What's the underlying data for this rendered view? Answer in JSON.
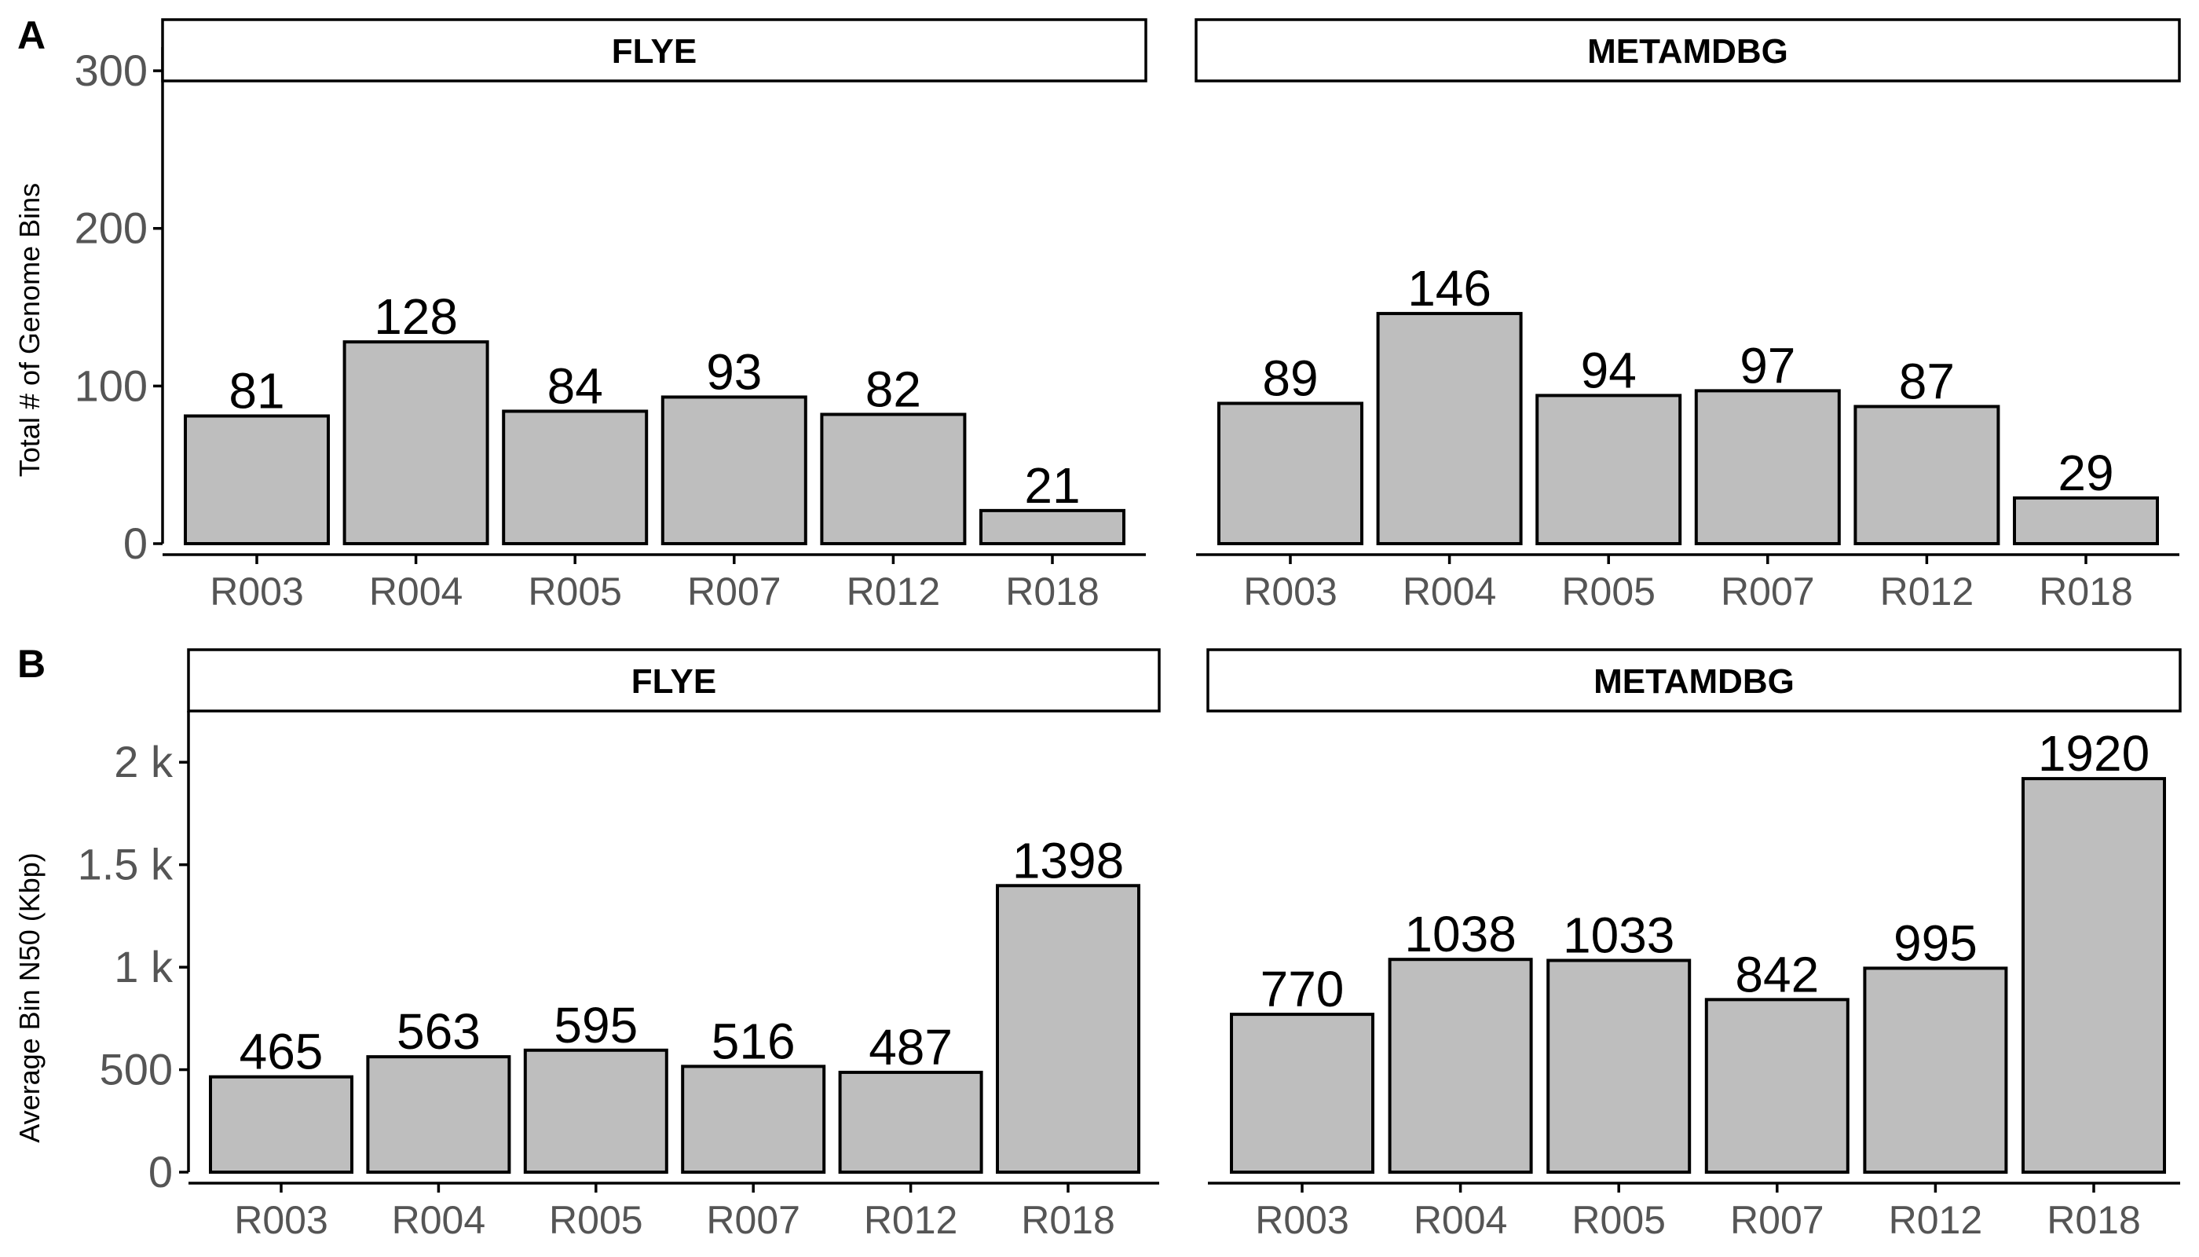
{
  "chart_data": [
    {
      "panel": "A",
      "type": "bar",
      "ylabel": "Total # of Genome Bins",
      "ylim": [
        0,
        315
      ],
      "yticks": [
        0,
        100,
        200,
        300
      ],
      "ytick_labels": [
        "0",
        "100",
        "200",
        "300"
      ],
      "grid": false,
      "facets": [
        {
          "title": "FLYE",
          "categories": [
            "R003",
            "R004",
            "R005",
            "R007",
            "R012",
            "R018"
          ],
          "values": [
            81,
            128,
            84,
            93,
            82,
            21
          ],
          "labels": [
            "81",
            "128",
            "84",
            "93",
            "82",
            "21"
          ]
        },
        {
          "title": "METAMDBG",
          "categories": [
            "R003",
            "R004",
            "R005",
            "R007",
            "R012",
            "R018"
          ],
          "values": [
            89,
            146,
            94,
            97,
            87,
            29
          ],
          "labels": [
            "89",
            "146",
            "94",
            "97",
            "87",
            "29"
          ]
        }
      ]
    },
    {
      "panel": "B",
      "type": "bar",
      "ylabel": "Average Bin N50 (Kbp)",
      "ylim": [
        0,
        2250
      ],
      "yticks": [
        0,
        500,
        1000,
        1500,
        2000
      ],
      "ytick_labels": [
        "0",
        "500",
        "1 k",
        "1.5 k",
        "2 k"
      ],
      "grid": false,
      "facets": [
        {
          "title": "FLYE",
          "categories": [
            "R003",
            "R004",
            "R005",
            "R007",
            "R012",
            "R018"
          ],
          "values": [
            465,
            563,
            595,
            516,
            487,
            1398
          ],
          "labels": [
            "465",
            "563",
            "595",
            "516",
            "487",
            "1398"
          ]
        },
        {
          "title": "METAMDBG",
          "categories": [
            "R003",
            "R004",
            "R005",
            "R007",
            "R012",
            "R018"
          ],
          "values": [
            770,
            1038,
            1033,
            842,
            995,
            1920
          ],
          "labels": [
            "770",
            "1038",
            "1033",
            "842",
            "995",
            "1920"
          ]
        }
      ]
    }
  ],
  "colors": {
    "bar_fill": "#bebebe",
    "bar_stroke": "#000000",
    "tick_label": "#555555",
    "strip_fill": "#ffffff"
  }
}
